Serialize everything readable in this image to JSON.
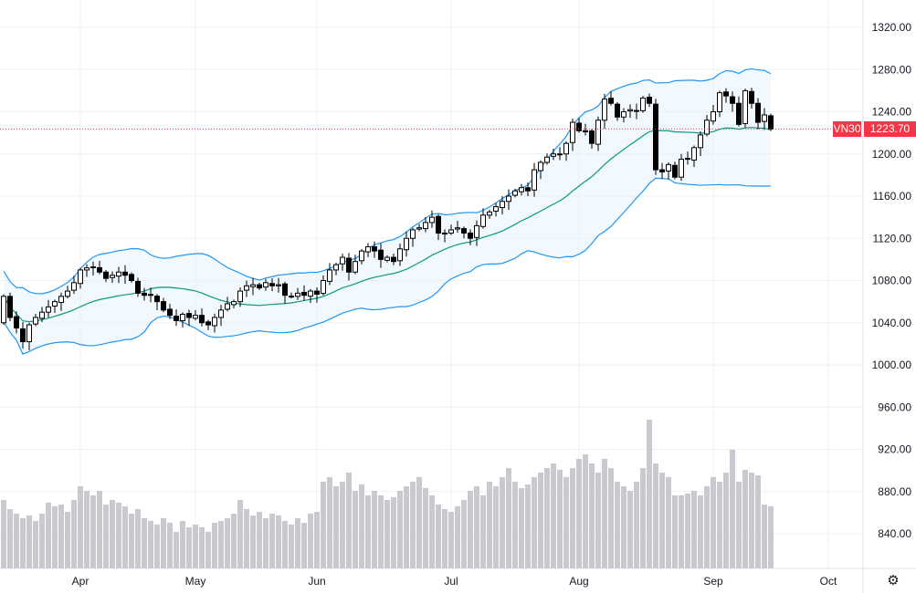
{
  "chart_data": {
    "type": "candlestick",
    "symbol": "VN30",
    "last_price": "1223.70",
    "y_ticks": [
      "1320.00",
      "1280.00",
      "1240.00",
      "1200.00",
      "1160.00",
      "1120.00",
      "1080.00",
      "1040.00",
      "1000.00",
      "960.00",
      "920.00",
      "880.00",
      "840.00"
    ],
    "y_range": [
      820,
      1335
    ],
    "x_ticks": [
      {
        "label": "Apr",
        "index": 12
      },
      {
        "label": "May",
        "index": 30
      },
      {
        "label": "Jun",
        "index": 49
      },
      {
        "label": "Jul",
        "index": 70
      },
      {
        "label": "Aug",
        "index": 90
      },
      {
        "label": "Sep",
        "index": 111
      },
      {
        "label": "Oct",
        "index": 129
      }
    ],
    "first_open": 1040,
    "close": [
      1065,
      1045,
      1035,
      1022,
      1038,
      1045,
      1050,
      1055,
      1060,
      1065,
      1070,
      1078,
      1090,
      1092,
      1093,
      1088,
      1082,
      1085,
      1088,
      1085,
      1080,
      1068,
      1066,
      1066,
      1060,
      1052,
      1047,
      1042,
      1048,
      1045,
      1047,
      1040,
      1038,
      1045,
      1052,
      1058,
      1060,
      1070,
      1075,
      1076,
      1073,
      1078,
      1075,
      1076,
      1066,
      1065,
      1068,
      1066,
      1070,
      1067,
      1080,
      1090,
      1095,
      1102,
      1088,
      1098,
      1108,
      1112,
      1108,
      1100,
      1102,
      1098,
      1110,
      1120,
      1128,
      1130,
      1135,
      1140,
      1125,
      1125,
      1128,
      1130,
      1125,
      1120,
      1132,
      1142,
      1145,
      1150,
      1155,
      1160,
      1165,
      1168,
      1165,
      1185,
      1192,
      1197,
      1200,
      1200,
      1210,
      1230,
      1222,
      1221,
      1210,
      1232,
      1252,
      1248,
      1235,
      1240,
      1242,
      1241,
      1253,
      1248,
      1185,
      1183,
      1190,
      1178,
      1195,
      1195,
      1206,
      1218,
      1232,
      1240,
      1258,
      1255,
      1248,
      1228,
      1260,
      1248,
      1230,
      1237,
      1223.7
    ],
    "volume": [
      75,
      65,
      60,
      55,
      58,
      52,
      60,
      72,
      68,
      70,
      62,
      75,
      90,
      85,
      80,
      85,
      70,
      75,
      72,
      68,
      60,
      65,
      55,
      52,
      48,
      55,
      50,
      40,
      52,
      45,
      48,
      45,
      40,
      50,
      52,
      55,
      60,
      75,
      65,
      58,
      62,
      55,
      60,
      58,
      52,
      48,
      55,
      50,
      60,
      62,
      95,
      100,
      90,
      95,
      105,
      85,
      92,
      80,
      85,
      80,
      75,
      78,
      85,
      90,
      95,
      100,
      88,
      80,
      70,
      65,
      62,
      68,
      75,
      85,
      90,
      80,
      95,
      90,
      100,
      110,
      95,
      88,
      92,
      100,
      105,
      110,
      115,
      108,
      100,
      110,
      120,
      125,
      115,
      105,
      120,
      110,
      95,
      90,
      85,
      95,
      110,
      163,
      115,
      105,
      100,
      80,
      80,
      82,
      85,
      80,
      90,
      100,
      95,
      105,
      130,
      95,
      108,
      105,
      102,
      70,
      68
    ],
    "indicator": "Bollinger Bands (20, 2)",
    "colors": {
      "up": "#ffffff",
      "down": "#000000",
      "band": "#2196f3",
      "basis": "#089981",
      "fill": "#e3f2fd",
      "volume": "#c9cacf",
      "price_label": "#f23645"
    }
  },
  "ui": {
    "settings_icon": "gear-icon"
  }
}
